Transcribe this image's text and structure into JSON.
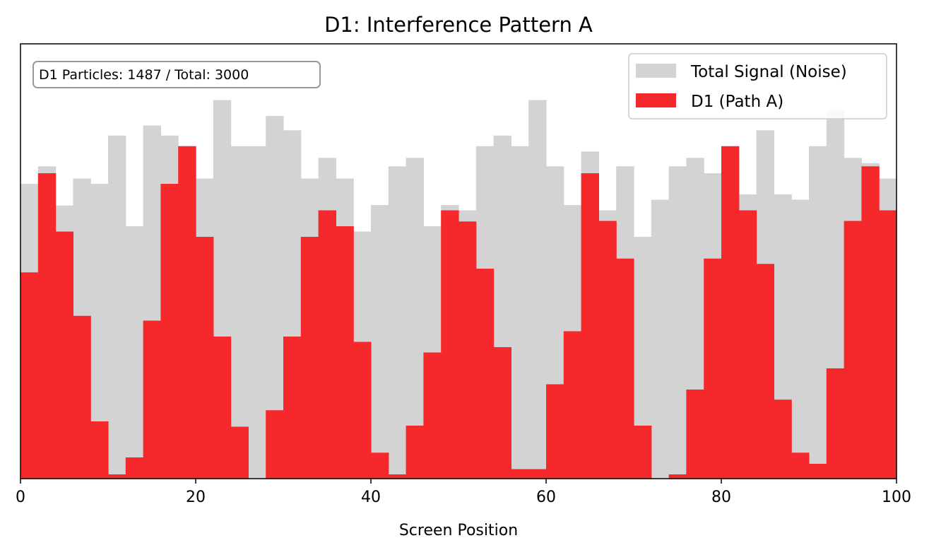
{
  "chart_data": {
    "type": "bar",
    "title": "D1: Interference Pattern A",
    "xlabel": "Screen Position",
    "ylabel": "",
    "xlim": [
      0,
      100
    ],
    "ylim": [
      0,
      82
    ],
    "xticks": [
      0,
      20,
      40,
      60,
      80,
      100
    ],
    "xtick_labels": [
      "0",
      "20",
      "40",
      "60",
      "80",
      "100"
    ],
    "bin_width": 2,
    "bin_starts": [
      0,
      2,
      4,
      6,
      8,
      10,
      12,
      14,
      16,
      18,
      20,
      22,
      24,
      26,
      28,
      30,
      32,
      34,
      36,
      38,
      40,
      42,
      44,
      46,
      48,
      50,
      52,
      54,
      56,
      58,
      60,
      62,
      64,
      66,
      68,
      70,
      72,
      74,
      76,
      78,
      80,
      82,
      84,
      86,
      88,
      90,
      92,
      94,
      96,
      98
    ],
    "series": [
      {
        "name": "Total Signal (Noise)",
        "color": "#d3d3d3",
        "values": [
          55.6,
          58.9,
          51.5,
          56.6,
          55.6,
          64.7,
          47.6,
          66.6,
          64.7,
          62.7,
          56.6,
          71.4,
          62.7,
          62.7,
          68.4,
          65.7,
          56.6,
          60.5,
          56.6,
          46.6,
          51.6,
          58.9,
          60.5,
          47.6,
          51.6,
          50.6,
          62.7,
          64.7,
          62.7,
          71.4,
          58.9,
          51.6,
          61.7,
          50.6,
          58.9,
          45.6,
          52.6,
          58.9,
          60.5,
          57.6,
          60.5,
          53.6,
          65.7,
          53.6,
          52.6,
          62.7,
          69.4,
          60.5,
          59.5,
          56.6
        ]
      },
      {
        "name": "D1 (Path A)",
        "color": "#f5292c",
        "values": [
          38.9,
          57.6,
          46.6,
          30.7,
          10.8,
          0.8,
          4.0,
          29.8,
          55.6,
          62.7,
          45.6,
          26.8,
          9.8,
          0,
          12.9,
          26.8,
          45.6,
          50.6,
          47.6,
          25.8,
          4.9,
          0.8,
          10.0,
          23.8,
          50.6,
          48.5,
          39.6,
          24.8,
          1.8,
          1.8,
          17.8,
          27.8,
          57.6,
          48.6,
          41.5,
          10.0,
          0,
          0.8,
          16.8,
          41.5,
          62.7,
          50.6,
          40.5,
          14.9,
          4.9,
          2.8,
          20.8,
          48.6,
          58.9,
          50.6
        ]
      }
    ],
    "legend": {
      "position": "top-right",
      "entries": [
        "Total Signal (Noise)",
        "D1 (Path A)"
      ]
    },
    "annotation": "D1 Particles: 1487 / Total: 3000"
  }
}
